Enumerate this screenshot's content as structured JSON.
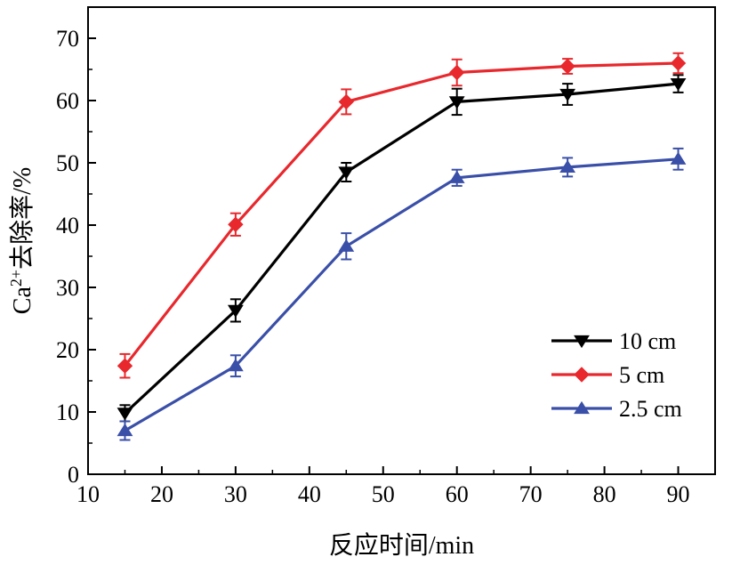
{
  "chart_data": {
    "type": "line",
    "title": "",
    "xlabel": "反应时间/min",
    "ylabel_prefix": "Ca",
    "ylabel_superscript": "2+",
    "ylabel_suffix": "去除率/%",
    "xlim": [
      10,
      95
    ],
    "ylim": [
      0,
      75
    ],
    "xticks": [
      10,
      20,
      30,
      40,
      50,
      60,
      70,
      80,
      90
    ],
    "yticks": [
      0,
      10,
      20,
      30,
      40,
      50,
      60,
      70
    ],
    "x": [
      15,
      30,
      45,
      60,
      75,
      90
    ],
    "legend_position": "bottom-right",
    "grid": false,
    "series": [
      {
        "name": "10 cm",
        "color": "#000000",
        "marker": "triangle-down",
        "values": [
          9.8,
          26.3,
          48.5,
          59.8,
          61.0,
          62.7
        ],
        "errors": [
          1.3,
          1.8,
          1.5,
          2.1,
          1.7,
          1.4
        ]
      },
      {
        "name": "5 cm",
        "color": "#e8282d",
        "marker": "diamond",
        "values": [
          17.4,
          40.1,
          59.8,
          64.5,
          65.5,
          66.0
        ],
        "errors": [
          1.9,
          1.8,
          2.0,
          2.1,
          1.2,
          1.6
        ]
      },
      {
        "name": "2.5 cm",
        "color": "#3a4fa8",
        "marker": "triangle-up",
        "values": [
          7.0,
          17.4,
          36.6,
          47.6,
          49.3,
          50.6
        ],
        "errors": [
          1.5,
          1.7,
          2.1,
          1.3,
          1.5,
          1.7
        ]
      }
    ]
  }
}
